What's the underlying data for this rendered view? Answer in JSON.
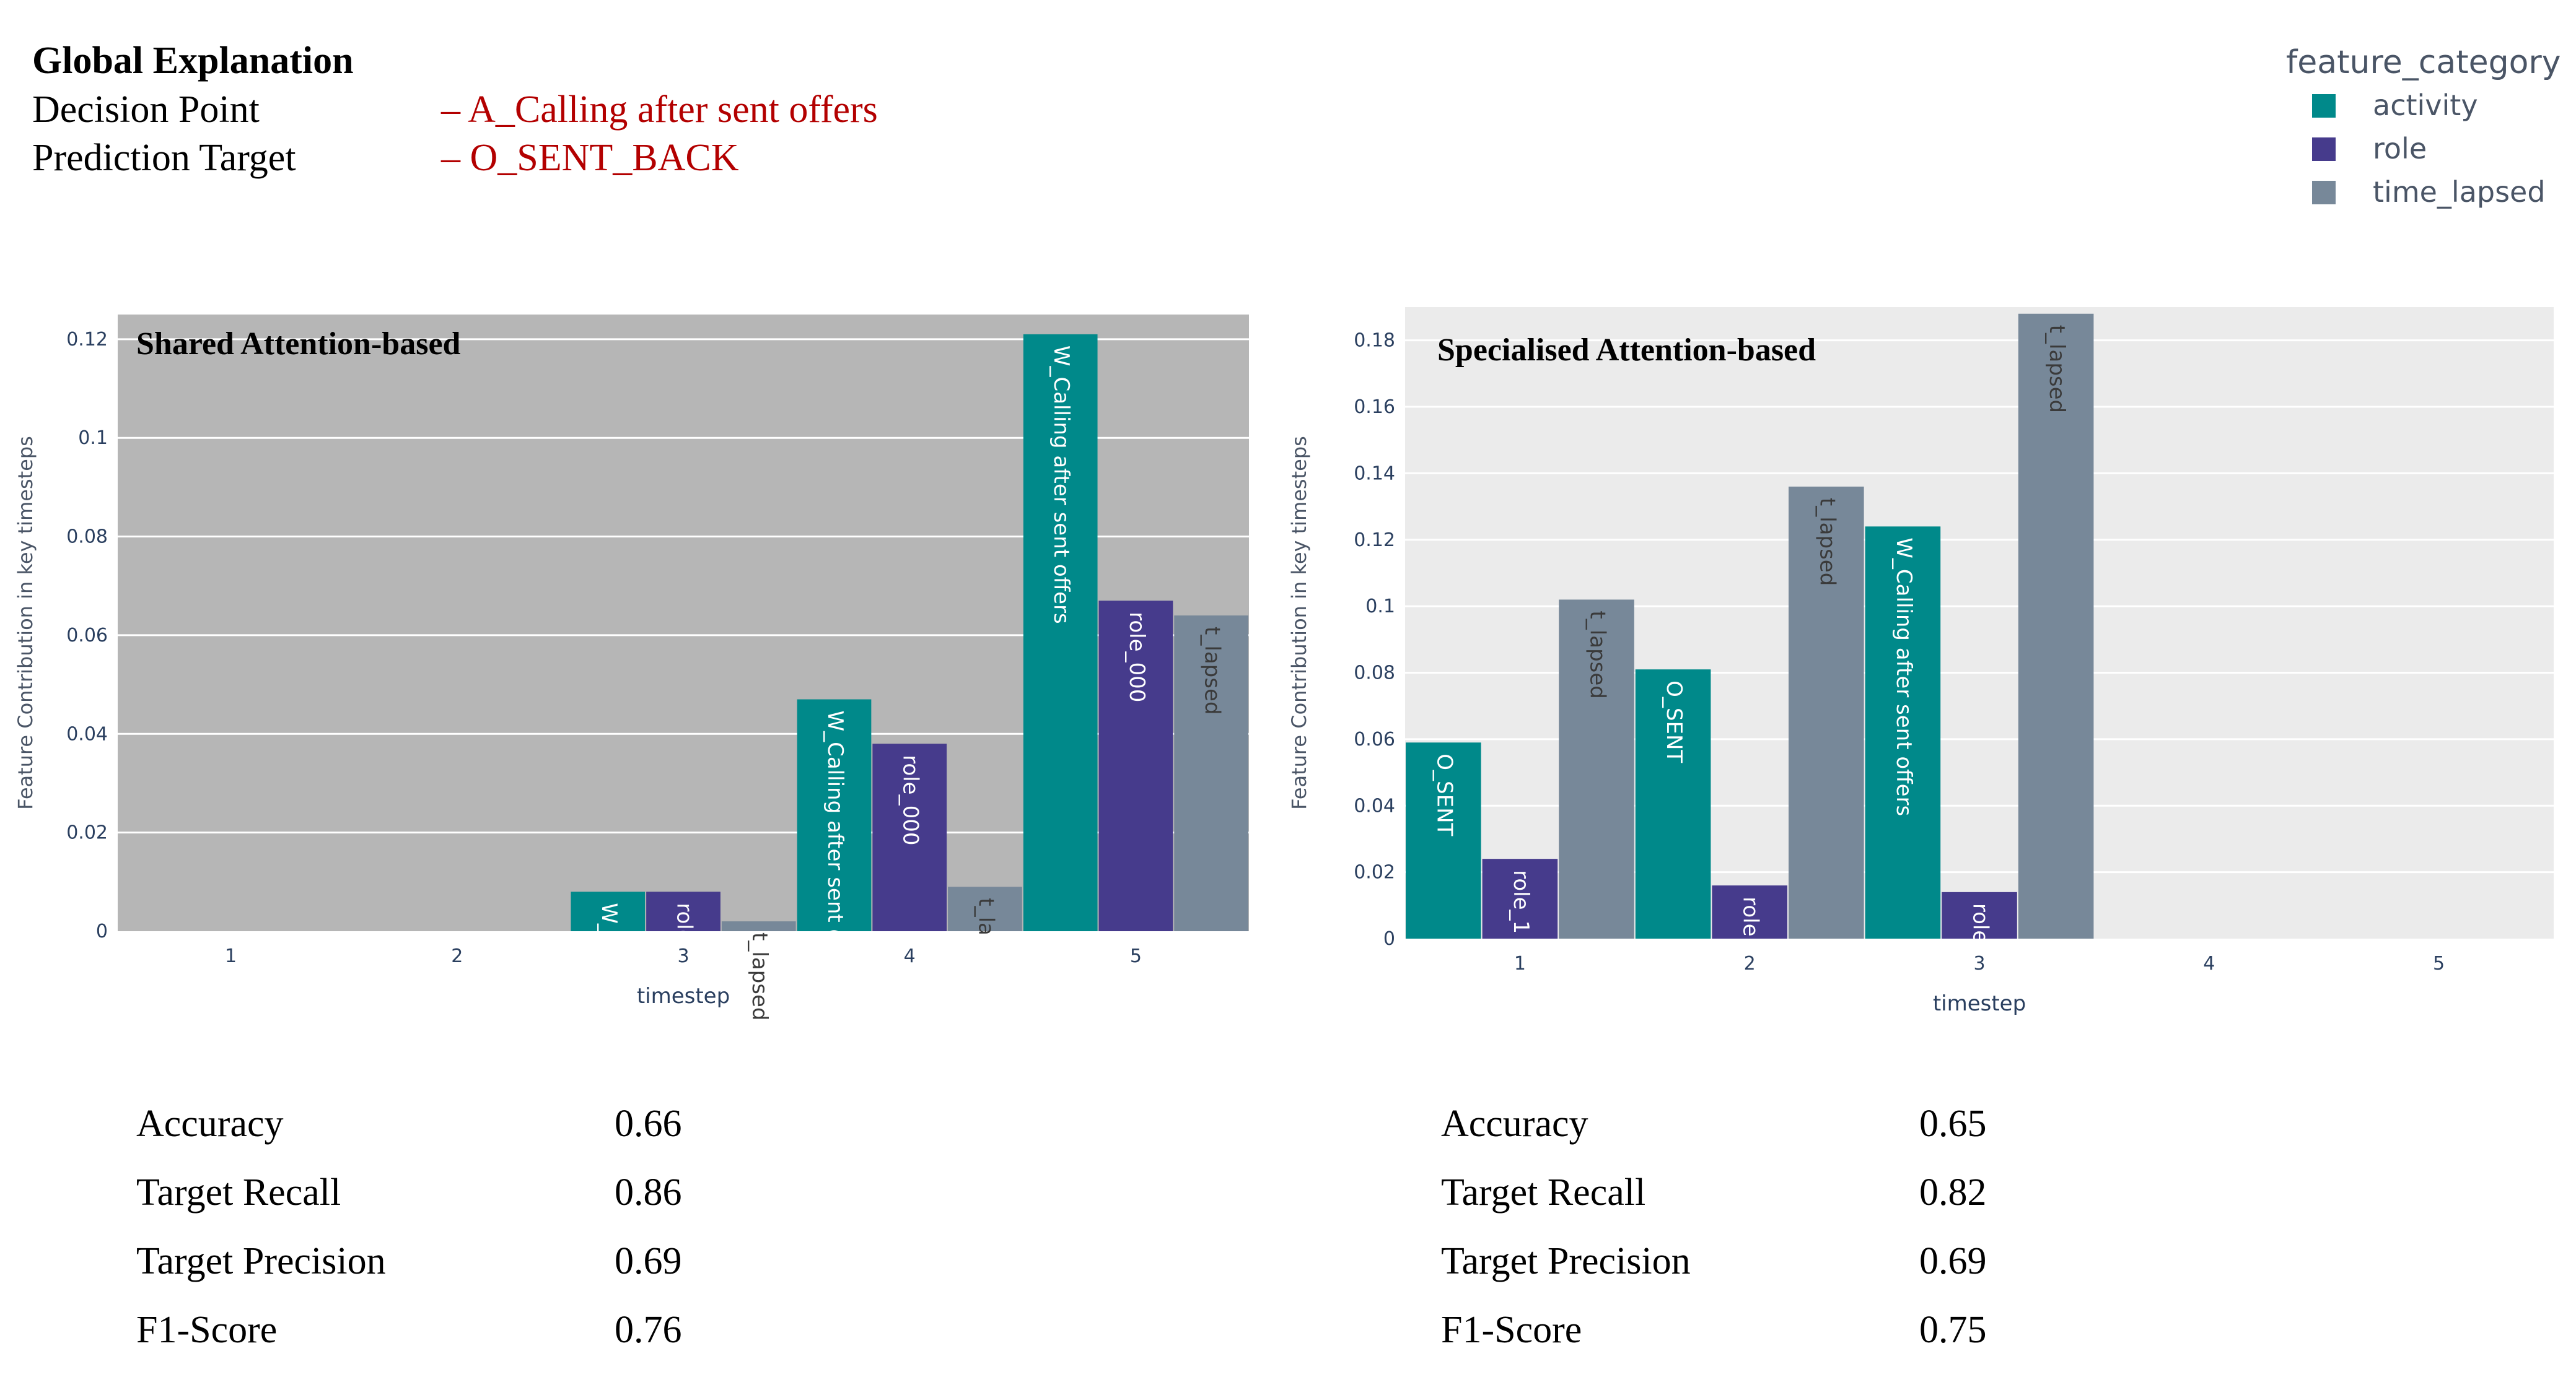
{
  "header": {
    "title": "Global Explanation",
    "decision_point_label": "Decision Point",
    "decision_point_value": "– A_Calling after sent offers",
    "prediction_target_label": "Prediction Target",
    "prediction_target_value": "– O_SENT_BACK"
  },
  "legend": {
    "title": "feature_category",
    "items": [
      {
        "label": "activity",
        "color": "#00898a"
      },
      {
        "label": "role",
        "color": "#463b8c"
      },
      {
        "label": "time_lapsed",
        "color": "#778899"
      }
    ]
  },
  "chart_data": [
    {
      "type": "bar",
      "title": "Shared Attention-based",
      "xlabel": "timestep",
      "ylabel": "Feature Contribution in key timesteps",
      "categories": [
        "1",
        "2",
        "3",
        "4",
        "5"
      ],
      "ylim": [
        0,
        0.125
      ],
      "yticks": [
        0,
        0.02,
        0.04,
        0.06,
        0.08,
        0.1,
        0.12
      ],
      "ytick_labels": [
        "0",
        "0.02",
        "0.04",
        "0.06",
        "0.08",
        "0.1",
        "0.12"
      ],
      "background": "#b6b6b6",
      "grid": true,
      "series": [
        {
          "name": "activity",
          "values": [
            0,
            0,
            0.008,
            0.047,
            0.121
          ],
          "labels": [
            "",
            "",
            "W_",
            "W_Calling after sent o",
            "W_Calling after sent offers"
          ]
        },
        {
          "name": "role",
          "values": [
            0,
            0,
            0.008,
            0.038,
            0.067
          ],
          "labels": [
            "",
            "",
            "role",
            "role_000",
            "role_000"
          ]
        },
        {
          "name": "time_lapsed",
          "values": [
            0,
            0,
            0.002,
            0.009,
            0.064
          ],
          "labels": [
            "",
            "",
            "t_lapsed",
            "t_la",
            "t_lapsed"
          ]
        }
      ]
    },
    {
      "type": "bar",
      "title": "Specialised Attention-based",
      "xlabel": "timestep",
      "ylabel": "Feature Contribution in key timesteps",
      "categories": [
        "1",
        "2",
        "3",
        "4",
        "5"
      ],
      "ylim": [
        0,
        0.19
      ],
      "yticks": [
        0,
        0.02,
        0.04,
        0.06,
        0.08,
        0.1,
        0.12,
        0.14,
        0.16,
        0.18
      ],
      "ytick_labels": [
        "0",
        "0.02",
        "0.04",
        "0.06",
        "0.08",
        "0.1",
        "0.12",
        "0.14",
        "0.16",
        "0.18"
      ],
      "background": "#ebebeb",
      "grid": true,
      "series": [
        {
          "name": "activity",
          "values": [
            0.059,
            0.081,
            0.124,
            0,
            0
          ],
          "labels": [
            "O_SENT",
            "O_SENT",
            "W_Calling after sent offers",
            "",
            ""
          ]
        },
        {
          "name": "role",
          "values": [
            0.024,
            0.016,
            0.014,
            0,
            0
          ],
          "labels": [
            "role_1",
            "role",
            "role",
            "",
            ""
          ]
        },
        {
          "name": "time_lapsed",
          "values": [
            0.102,
            0.136,
            0.188,
            0,
            0
          ],
          "labels": [
            "t_lapsed",
            "t_lapsed",
            "t_lapsed",
            "",
            ""
          ]
        }
      ]
    }
  ],
  "metrics": [
    {
      "rows": [
        {
          "label": "Accuracy",
          "value": "0.66"
        },
        {
          "label": "Target Recall",
          "value": "0.86"
        },
        {
          "label": "Target Precision",
          "value": "0.69"
        },
        {
          "label": "F1-Score",
          "value": "0.76"
        }
      ]
    },
    {
      "rows": [
        {
          "label": "Accuracy",
          "value": "0.65"
        },
        {
          "label": "Target Recall",
          "value": "0.82"
        },
        {
          "label": "Target Precision",
          "value": "0.69"
        },
        {
          "label": "F1-Score",
          "value": "0.75"
        }
      ]
    }
  ]
}
